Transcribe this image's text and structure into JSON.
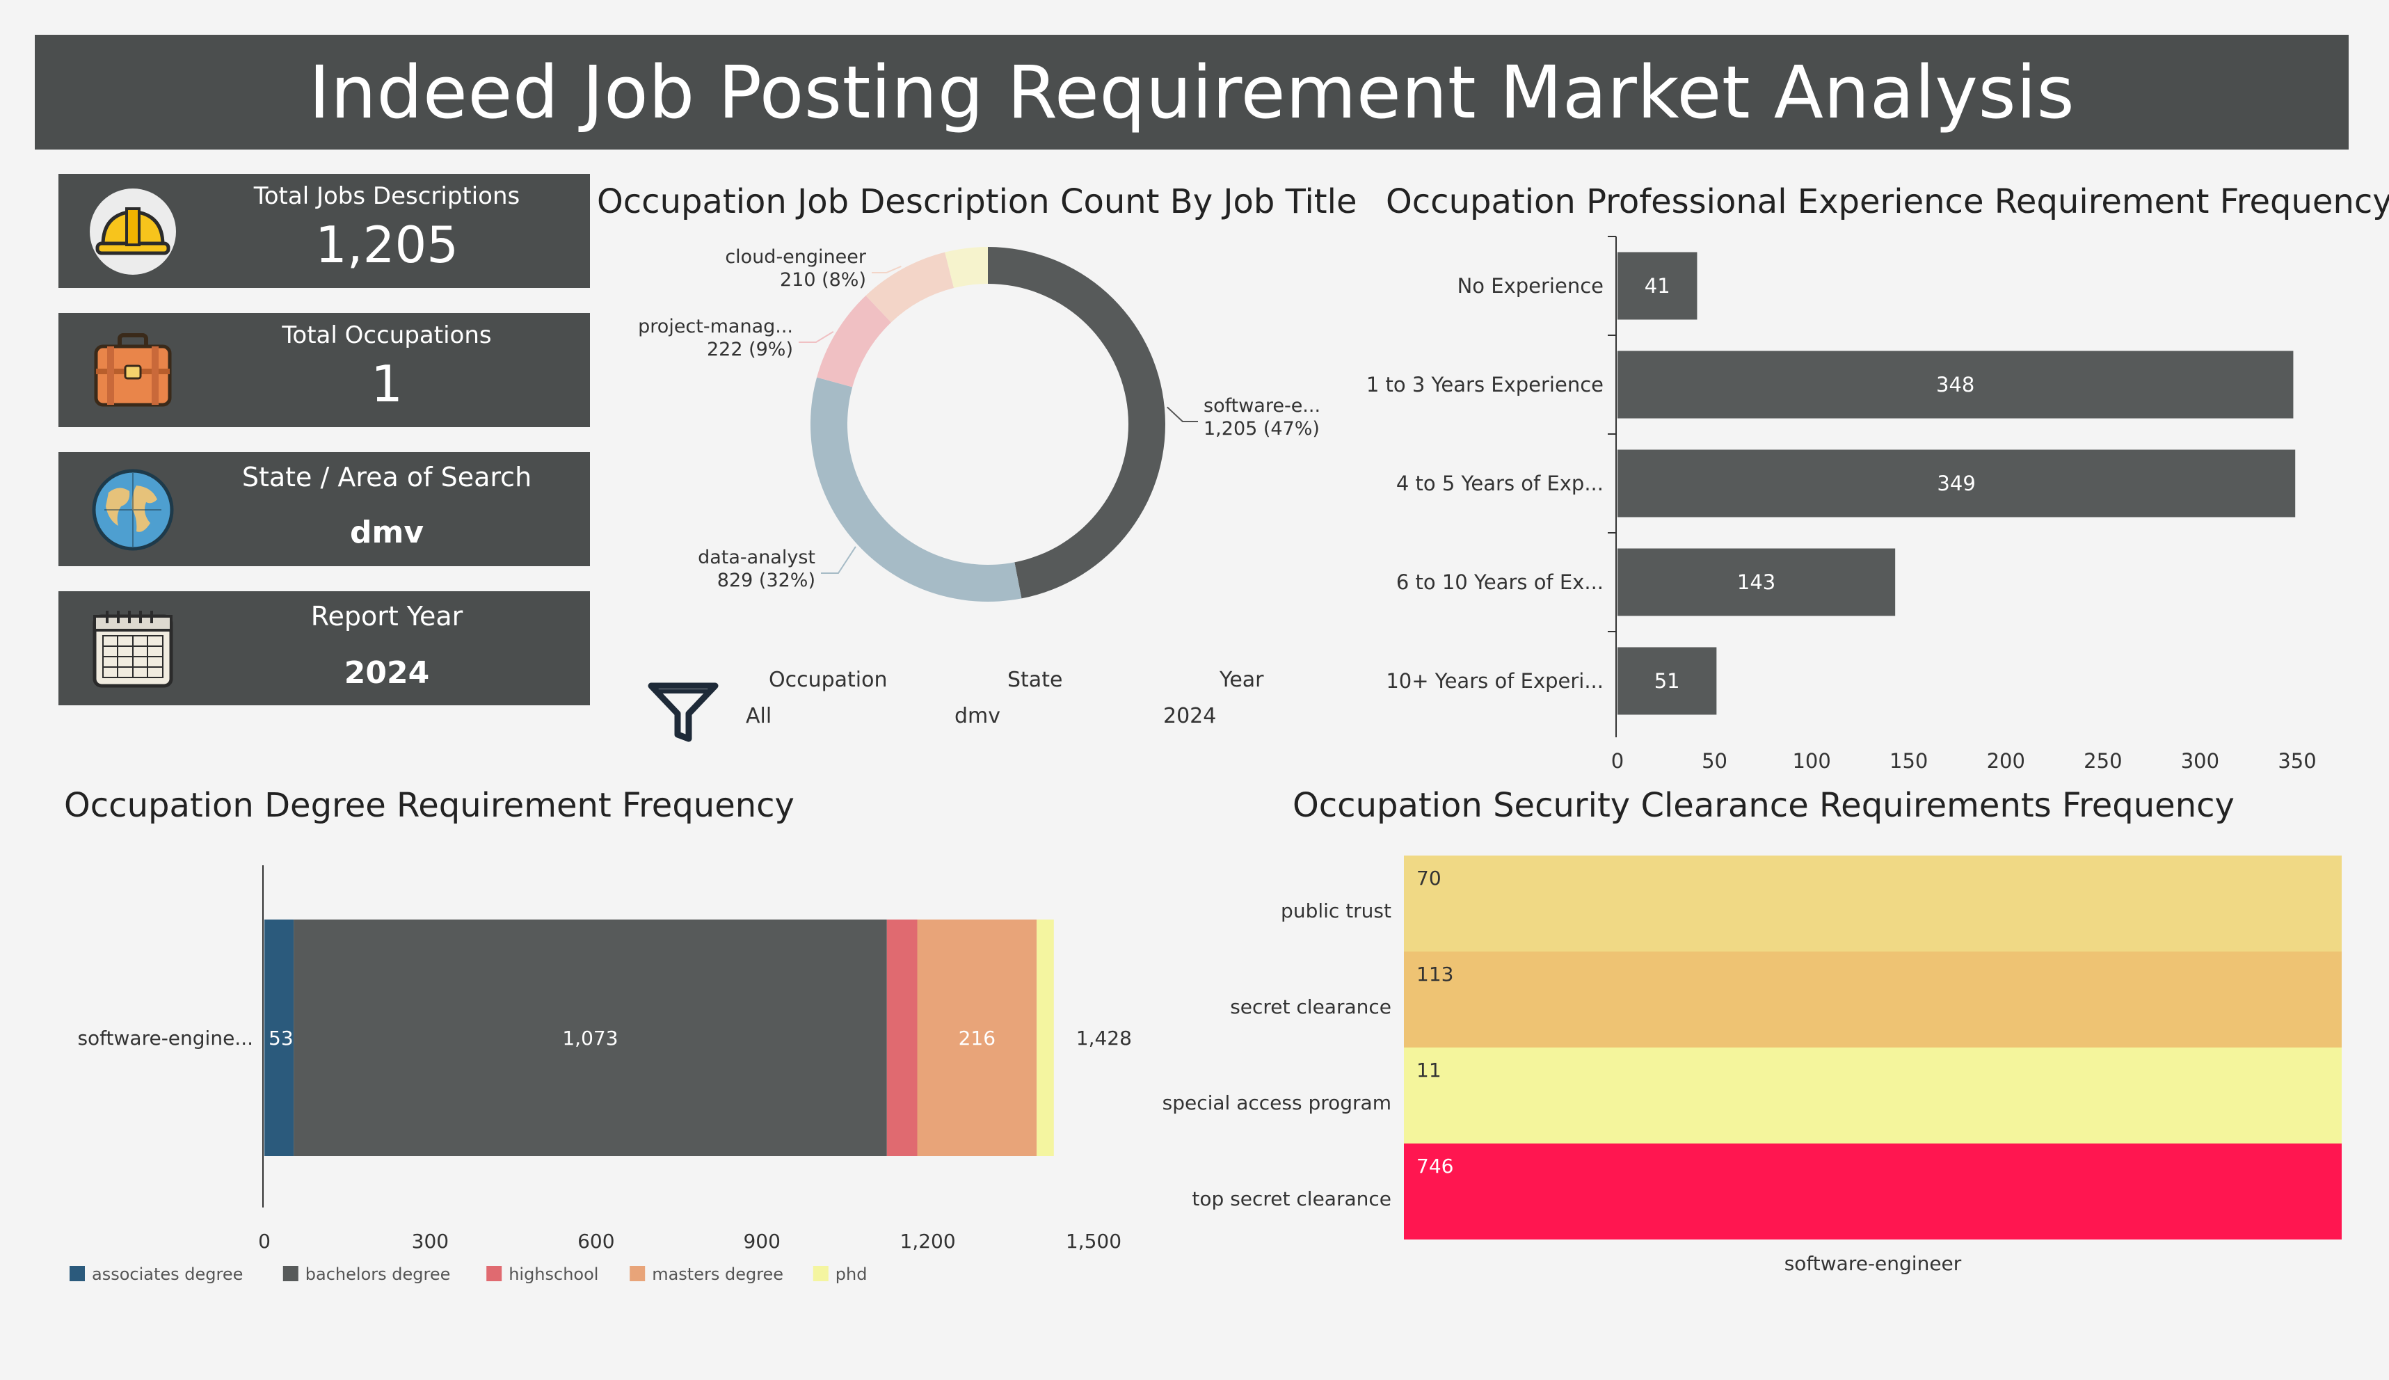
{
  "title": "Indeed Job Posting Requirement Market Analysis",
  "kpis": [
    {
      "label": "Total Jobs Descriptions",
      "value": "1,205",
      "icon": "hard-hat-icon"
    },
    {
      "label": "Total Occupations",
      "value": "1",
      "icon": "briefcase-icon"
    },
    {
      "label": "State / Area of Search",
      "value": "dmv",
      "icon": "globe-icon"
    },
    {
      "label": "Report Year",
      "value": "2024",
      "icon": "calendar-icon"
    }
  ],
  "filters": {
    "icon": "funnel-icon",
    "items": [
      {
        "label": "Occupation",
        "value": "All"
      },
      {
        "label": "State",
        "value": "dmv"
      },
      {
        "label": "Year",
        "value": "2024"
      }
    ]
  },
  "colors": {
    "banner": "#4b4e4e",
    "bar": "#575a5a",
    "associates": "#2b5a7c",
    "bachelors": "#575a5a",
    "highschool": "#e06a70",
    "masters": "#e8a479",
    "phd": "#f4f5a0",
    "donut_software": "#575a5a",
    "donut_data": "#a6bbc6",
    "donut_project": "#f0c0c3",
    "donut_cloud": "#f3d5c8",
    "donut_other": "#f6f3cd"
  },
  "chart_data": [
    {
      "type": "pie",
      "title": "Occupation Job Description Count By Job Title",
      "slices": [
        {
          "name": "software-e...",
          "value": 1205,
          "label": "1,205 (47%)"
        },
        {
          "name": "data-analyst",
          "value": 829,
          "label": "829 (32%)"
        },
        {
          "name": "project-manag...",
          "value": 222,
          "label": "222 (9%)"
        },
        {
          "name": "cloud-engineer",
          "value": 210,
          "label": "210 (8%)"
        },
        {
          "name": "",
          "value": 100,
          "label": ""
        }
      ]
    },
    {
      "type": "bar",
      "orientation": "horizontal",
      "title": "Occupation Professional Experience Requirement Frequency",
      "categories": [
        "No Experience",
        "1 to 3 Years Experience",
        "4 to 5 Years of Exp...",
        "6 to 10 Years of Ex...",
        "10+ Years of Experi..."
      ],
      "values": [
        41,
        348,
        349,
        143,
        51
      ],
      "value_labels": [
        "41",
        "348",
        "349",
        "143",
        "51"
      ],
      "xlim": [
        0,
        350
      ],
      "xticks": [
        0,
        50,
        100,
        150,
        200,
        250,
        300,
        350
      ]
    },
    {
      "type": "bar",
      "orientation": "horizontal",
      "stacked": true,
      "title": "Occupation Degree Requirement Frequency",
      "categories": [
        "software-engine..."
      ],
      "series": [
        {
          "name": "associates degree",
          "values": [
            53
          ],
          "label": "53"
        },
        {
          "name": "bachelors degree",
          "values": [
            1073
          ],
          "label": "1,073"
        },
        {
          "name": "highschool",
          "values": [
            55
          ],
          "label": ""
        },
        {
          "name": "masters degree",
          "values": [
            216
          ],
          "label": "216"
        },
        {
          "name": "phd",
          "values": [
            31
          ],
          "label": ""
        }
      ],
      "total_label": "1,428",
      "xlim": [
        0,
        1500
      ],
      "xticks": [
        "0",
        "300",
        "600",
        "900",
        "1,200",
        "1,500"
      ],
      "xtick_values": [
        0,
        300,
        600,
        900,
        1200,
        1500
      ],
      "legend": "bottom-left"
    },
    {
      "type": "heatmap",
      "title": "Occupation Security Clearance Requirements Frequency",
      "rows": [
        "public trust",
        "secret clearance",
        "special access program",
        "top secret clearance"
      ],
      "columns": [
        "software-engineer"
      ],
      "values": [
        70,
        113,
        11,
        746
      ],
      "cell_colors": [
        "#f0d985",
        "#eec373",
        "#f4f59c",
        "#ff1650"
      ]
    }
  ]
}
